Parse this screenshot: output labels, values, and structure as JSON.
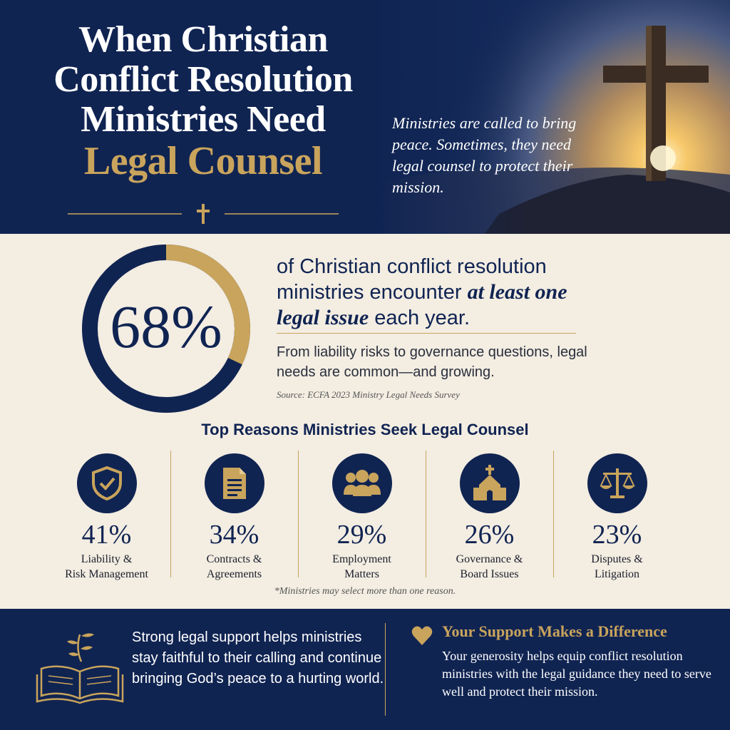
{
  "header": {
    "title_lines": [
      "When Christian",
      "Conflict Resolution",
      "Ministries Need"
    ],
    "title_highlight": "Legal Counsel",
    "subtitle": "Ministries are called to bring peace. Sometimes, they need legal counsel to protect their mission."
  },
  "stat": {
    "percent_label": "68%",
    "percent_value": 68,
    "text_before": "of Christian conflict resolution ministries encounter ",
    "text_emphasis": "at least one legal issue",
    "text_after": " each year.",
    "subtext": "From liability risks to governance questions, legal needs are common—and growing.",
    "source": "Source: ECFA 2023 Ministry Legal Needs Survey"
  },
  "reasons": {
    "title": "Top Reasons Ministries Seek Legal Counsel",
    "items": [
      {
        "icon": "shield-check-icon",
        "pct": "41%",
        "label_1": "Liability &",
        "label_2": "Risk Management"
      },
      {
        "icon": "document-icon",
        "pct": "34%",
        "label_1": "Contracts &",
        "label_2": "Agreements"
      },
      {
        "icon": "people-icon",
        "pct": "29%",
        "label_1": "Employment",
        "label_2": "Matters"
      },
      {
        "icon": "church-icon",
        "pct": "26%",
        "label_1": "Governance &",
        "label_2": "Board Issues"
      },
      {
        "icon": "scales-icon",
        "pct": "23%",
        "label_1": "Disputes &",
        "label_2": "Litigation"
      }
    ],
    "footnote": "*Ministries may select more than one reason."
  },
  "footer": {
    "left_text": "Strong legal support helps ministries stay faithful to their calling and continue bringing God’s peace to a hurting world.",
    "support_title": "Your Support Makes a Difference",
    "support_text": "Your generosity helps equip conflict resolution ministries with the legal guidance they need to serve well and protect their mission."
  },
  "colors": {
    "navy": "#102452",
    "gold": "#c9a45c",
    "cream": "#f3ede2"
  }
}
